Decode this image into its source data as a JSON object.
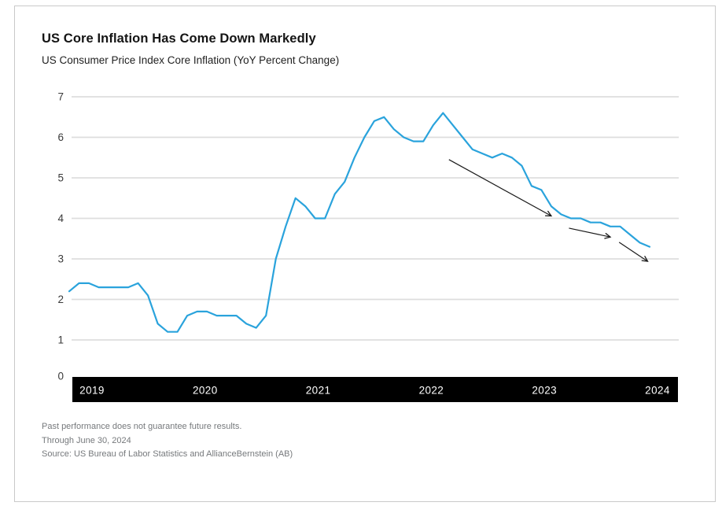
{
  "header": {
    "title": "US Core Inflation Has Come Down Markedly",
    "subtitle": "US Consumer Price Index Core Inflation (YoY Percent Change)"
  },
  "chart_data": {
    "type": "line",
    "title": "US Core Inflation Has Come Down Markedly",
    "subtitle": "US Consumer Price Index Core Inflation (YoY Percent Change)",
    "frequency": "monthly",
    "x": [
      "2019-07",
      "2019-08",
      "2019-09",
      "2019-10",
      "2019-11",
      "2019-12",
      "2020-01",
      "2020-02",
      "2020-03",
      "2020-04",
      "2020-05",
      "2020-06",
      "2020-07",
      "2020-08",
      "2020-09",
      "2020-10",
      "2020-11",
      "2020-12",
      "2021-01",
      "2021-02",
      "2021-03",
      "2021-04",
      "2021-05",
      "2021-06",
      "2021-07",
      "2021-08",
      "2021-09",
      "2021-10",
      "2021-11",
      "2021-12",
      "2022-01",
      "2022-02",
      "2022-03",
      "2022-04",
      "2022-05",
      "2022-06",
      "2022-07",
      "2022-08",
      "2022-09",
      "2022-10",
      "2022-11",
      "2022-12",
      "2023-01",
      "2023-02",
      "2023-03",
      "2023-04",
      "2023-05",
      "2023-06",
      "2023-07",
      "2023-08",
      "2023-09",
      "2023-10",
      "2023-11",
      "2023-12",
      "2024-01",
      "2024-02",
      "2024-03",
      "2024-04",
      "2024-05",
      "2024-06"
    ],
    "values": [
      2.2,
      2.4,
      2.4,
      2.3,
      2.3,
      2.3,
      2.3,
      2.4,
      2.1,
      1.4,
      1.2,
      1.2,
      1.6,
      1.7,
      1.7,
      1.6,
      1.6,
      1.6,
      1.4,
      1.3,
      1.6,
      3.0,
      3.8,
      4.5,
      4.3,
      4.0,
      4.0,
      4.6,
      4.9,
      5.5,
      6.0,
      6.4,
      6.5,
      6.2,
      6.0,
      5.9,
      5.9,
      6.3,
      6.6,
      6.3,
      6.0,
      5.7,
      5.6,
      5.5,
      5.6,
      5.5,
      5.3,
      4.8,
      4.7,
      4.3,
      4.1,
      4.0,
      4.0,
      3.9,
      3.9,
      3.8,
      3.8,
      3.6,
      3.4,
      3.3
    ],
    "x_tick_labels": [
      "2019",
      "2020",
      "2021",
      "2022",
      "2023",
      "2024"
    ],
    "y_ticks": [
      0,
      1,
      2,
      3,
      4,
      5,
      6,
      7
    ],
    "ylim": [
      0,
      7
    ],
    "grid": "horizontal",
    "legend": "none",
    "line_color": "#2aa3dc",
    "grid_color": "#dedede",
    "axis_band_color": "#000000",
    "axis_band_text_color": "#ffffff",
    "tick_label_color": "#3a3a3a",
    "annotation_arrows": [
      {
        "from": {
          "m": 38.6,
          "v": 5.45
        },
        "to": {
          "m": 49.0,
          "v": 4.06
        }
      },
      {
        "from": {
          "m": 50.8,
          "v": 3.76
        },
        "to": {
          "m": 55.0,
          "v": 3.54
        }
      },
      {
        "from": {
          "m": 55.9,
          "v": 3.41
        },
        "to": {
          "m": 58.8,
          "v": 2.94
        }
      }
    ],
    "arrow_color": "#1a1a1a"
  },
  "footnotes": [
    "Past performance does not guarantee future results.",
    "Through June 30, 2024",
    "Source: US Bureau of Labor Statistics and AllianceBernstein (AB)"
  ]
}
